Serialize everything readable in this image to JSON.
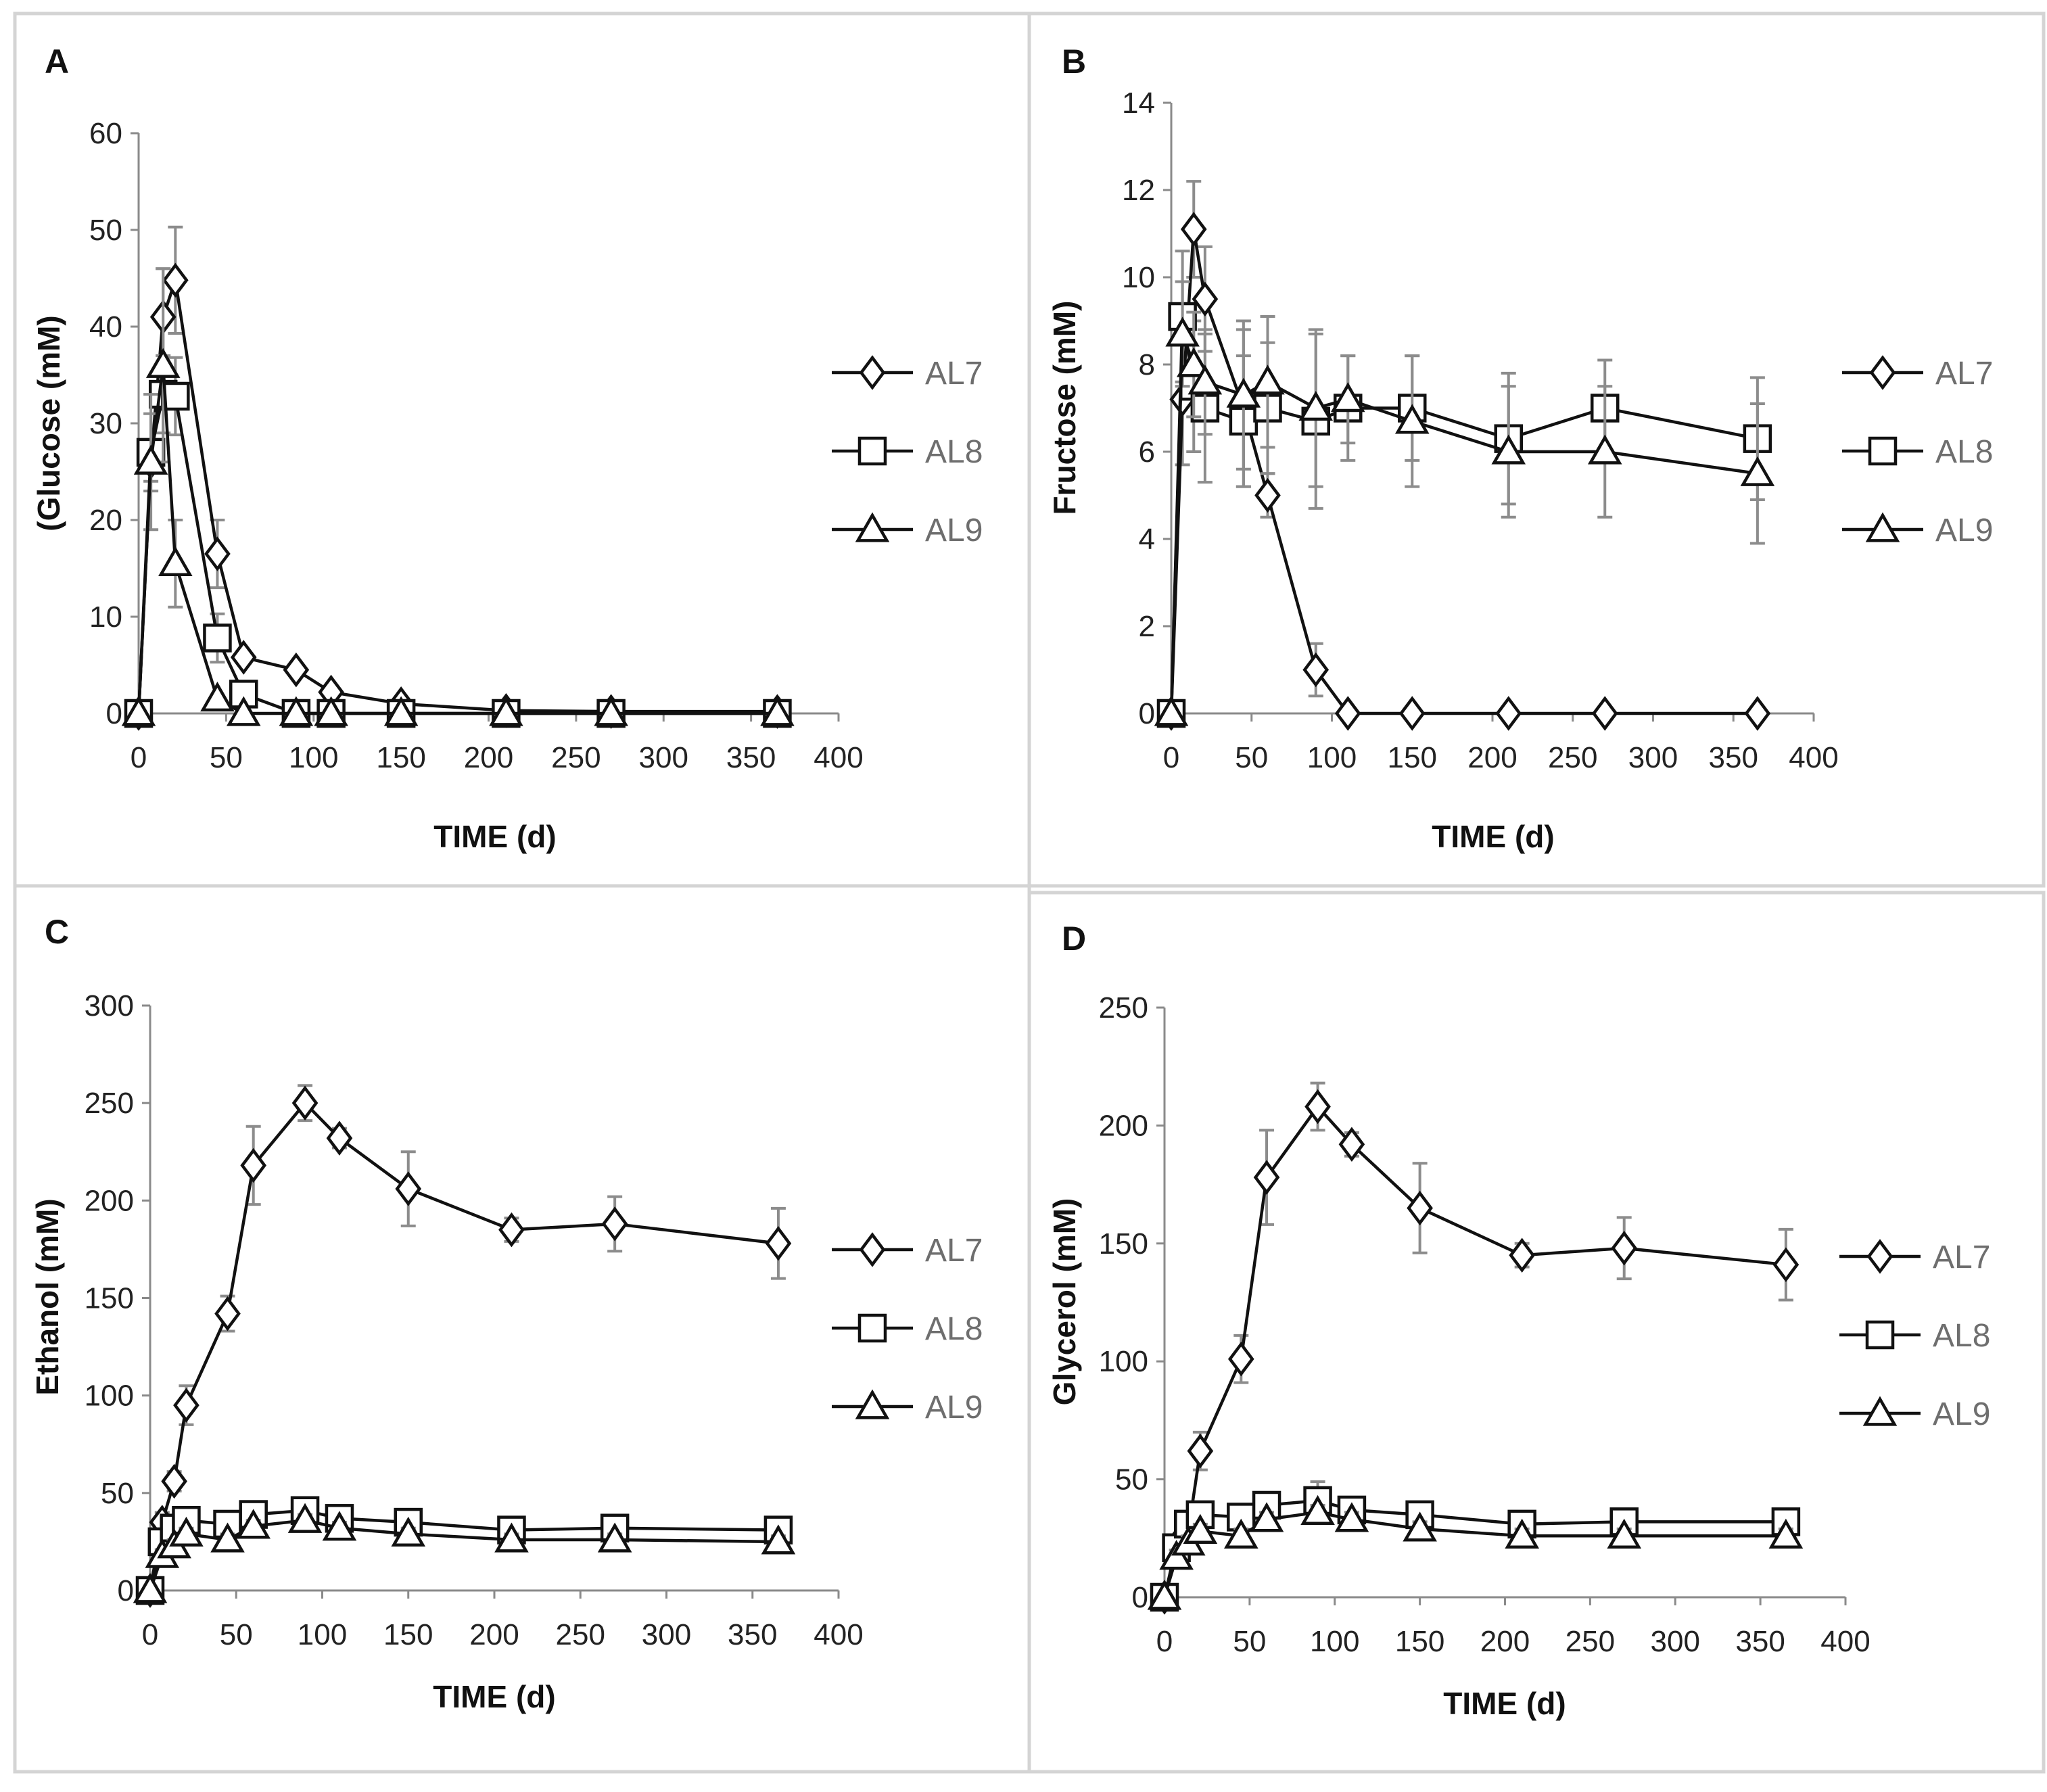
{
  "figure": {
    "legend_series": [
      "AL7",
      "AL8",
      "AL9"
    ],
    "marker_shapes": {
      "AL7": "diamond",
      "AL8": "square",
      "AL9": "triangle"
    },
    "colors": {
      "line": "#111111",
      "error_bar": "#8c8c8c",
      "axis": "#8a8a8a",
      "legend_text": "#6e6e6e",
      "frame": "#d4d4d4"
    }
  },
  "chart_data": [
    {
      "panel": "A",
      "type": "line",
      "xlabel": "TIME (d)",
      "ylabel": "(Glucose (mM)",
      "xlim": [
        0,
        400
      ],
      "ylim": [
        0,
        60
      ],
      "xticks": [
        0,
        50,
        100,
        150,
        200,
        250,
        300,
        350,
        400
      ],
      "yticks": [
        0,
        10,
        20,
        30,
        40,
        50,
        60
      ],
      "legend_position": "right",
      "series": [
        {
          "name": "AL7",
          "marker": "diamond",
          "x": [
            0,
            7,
            14,
            21,
            45,
            60,
            90,
            110,
            150,
            210,
            270,
            365
          ],
          "y": [
            0,
            26,
            41,
            44.8,
            16.5,
            5.8,
            4.5,
            2.2,
            1.0,
            0.3,
            0.2,
            0.2
          ],
          "err": [
            0,
            2,
            5,
            5.5,
            3.5,
            0,
            0,
            0,
            0,
            0,
            0,
            0
          ]
        },
        {
          "name": "AL8",
          "marker": "square",
          "x": [
            0,
            7,
            14,
            21,
            45,
            60,
            90,
            110,
            150,
            210,
            270,
            365
          ],
          "y": [
            0,
            27,
            33,
            32.8,
            7.8,
            2.0,
            0,
            0,
            0,
            0,
            0,
            0
          ],
          "err": [
            0,
            4,
            4,
            4,
            2.5,
            0,
            0,
            0,
            0,
            0,
            0,
            0
          ]
        },
        {
          "name": "AL9",
          "marker": "triangle",
          "x": [
            0,
            7,
            14,
            21,
            45,
            60,
            90,
            110,
            150,
            210,
            270,
            365
          ],
          "y": [
            0,
            26,
            36,
            15.5,
            1.5,
            0,
            0,
            0,
            0,
            0,
            0,
            0
          ],
          "err": [
            0,
            7,
            10,
            4.5,
            0,
            0,
            0,
            0,
            0,
            0,
            0,
            0
          ]
        }
      ]
    },
    {
      "panel": "B",
      "type": "line",
      "xlabel": "TIME (d)",
      "ylabel": "Fructose (mM)",
      "xlim": [
        0,
        400
      ],
      "ylim": [
        0,
        14
      ],
      "xticks": [
        0,
        50,
        100,
        150,
        200,
        250,
        300,
        350,
        400
      ],
      "yticks": [
        0,
        2,
        4,
        6,
        8,
        10,
        12,
        14
      ],
      "legend_position": "right",
      "series": [
        {
          "name": "AL7",
          "marker": "diamond",
          "x": [
            0,
            7,
            14,
            21,
            45,
            60,
            90,
            110,
            150,
            210,
            270,
            365
          ],
          "y": [
            0,
            7.2,
            11.1,
            9.5,
            7.0,
            5.0,
            1.0,
            0,
            0,
            0,
            0,
            0
          ],
          "err": [
            0,
            1.5,
            1.1,
            1.2,
            1.8,
            0.5,
            0.6,
            0,
            0,
            0,
            0,
            0
          ]
        },
        {
          "name": "AL8",
          "marker": "square",
          "x": [
            0,
            7,
            14,
            21,
            45,
            60,
            90,
            110,
            150,
            210,
            270,
            365
          ],
          "y": [
            0,
            9.1,
            7.5,
            7.0,
            6.7,
            7.0,
            6.7,
            7.0,
            7.0,
            6.3,
            7.0,
            6.3
          ],
          "err": [
            0,
            1.5,
            1.5,
            1.7,
            1.5,
            1.5,
            2.0,
            1.2,
            1.2,
            1.5,
            1.1,
            1.4
          ]
        },
        {
          "name": "AL9",
          "marker": "triangle",
          "x": [
            0,
            7,
            14,
            21,
            45,
            60,
            90,
            110,
            150,
            210,
            270,
            365
          ],
          "y": [
            0,
            8.7,
            8.0,
            7.6,
            7.3,
            7.6,
            7.0,
            7.2,
            6.7,
            6.0,
            6.0,
            5.5
          ],
          "err": [
            0,
            1.2,
            1.2,
            1.2,
            1.7,
            1.5,
            1.8,
            1.0,
            1.5,
            1.5,
            1.5,
            1.6
          ]
        }
      ]
    },
    {
      "panel": "C",
      "type": "line",
      "xlabel": "TIME (d)",
      "ylabel": "Ethanol (mM)",
      "xlim": [
        0,
        400
      ],
      "ylim": [
        0,
        300
      ],
      "xticks": [
        0,
        50,
        100,
        150,
        200,
        250,
        300,
        350,
        400
      ],
      "yticks": [
        0,
        50,
        100,
        150,
        200,
        250,
        300
      ],
      "legend_position": "right",
      "series": [
        {
          "name": "AL7",
          "marker": "diamond",
          "x": [
            0,
            7,
            14,
            21,
            45,
            60,
            90,
            110,
            150,
            210,
            270,
            365
          ],
          "y": [
            0,
            35,
            56,
            95,
            142,
            218,
            250,
            232,
            206,
            185,
            188,
            178
          ],
          "err": [
            0,
            5,
            5,
            10,
            9,
            20,
            9,
            5,
            19,
            6,
            14,
            18
          ]
        },
        {
          "name": "AL8",
          "marker": "square",
          "x": [
            0,
            7,
            14,
            21,
            45,
            60,
            90,
            110,
            150,
            210,
            270,
            365
          ],
          "y": [
            0,
            25,
            32,
            36,
            34,
            39,
            41,
            37,
            35,
            31,
            32,
            31
          ],
          "err": [
            0,
            3,
            3,
            3,
            3,
            3,
            3,
            3,
            3,
            3,
            3,
            3
          ]
        },
        {
          "name": "AL9",
          "marker": "triangle",
          "x": [
            0,
            7,
            14,
            21,
            45,
            60,
            90,
            110,
            150,
            210,
            270,
            365
          ],
          "y": [
            0,
            18,
            23,
            29,
            26,
            33,
            36,
            32,
            29,
            26,
            26,
            25
          ],
          "err": [
            0,
            3,
            3,
            3,
            3,
            3,
            3,
            3,
            3,
            3,
            3,
            3
          ]
        }
      ]
    },
    {
      "panel": "D",
      "type": "line",
      "xlabel": "TIME (d)",
      "ylabel": "Glycerol (mM)",
      "xlim": [
        0,
        400
      ],
      "ylim": [
        0,
        250
      ],
      "xticks": [
        0,
        50,
        100,
        150,
        200,
        250,
        300,
        350,
        400
      ],
      "yticks": [
        0,
        50,
        100,
        150,
        200,
        250
      ],
      "legend_position": "right",
      "series": [
        {
          "name": "AL7",
          "marker": "diamond",
          "x": [
            0,
            7,
            14,
            21,
            45,
            60,
            90,
            110,
            150,
            210,
            270,
            365
          ],
          "y": [
            0,
            22,
            28,
            62,
            101,
            178,
            208,
            192,
            165,
            145,
            148,
            141
          ],
          "err": [
            0,
            4,
            4,
            8,
            10,
            20,
            10,
            5,
            19,
            5,
            13,
            15
          ]
        },
        {
          "name": "AL8",
          "marker": "square",
          "x": [
            0,
            7,
            14,
            21,
            45,
            60,
            90,
            110,
            150,
            210,
            270,
            365
          ],
          "y": [
            0,
            21,
            31,
            35,
            34,
            39,
            41,
            37,
            35,
            31,
            32,
            32
          ],
          "err": [
            0,
            3,
            3,
            3,
            3,
            3,
            8,
            3,
            3,
            3,
            3,
            3
          ]
        },
        {
          "name": "AL9",
          "marker": "triangle",
          "x": [
            0,
            7,
            14,
            21,
            45,
            60,
            90,
            110,
            150,
            210,
            270,
            365
          ],
          "y": [
            0,
            17,
            23,
            28,
            26,
            33,
            36,
            33,
            29,
            26,
            26,
            26
          ],
          "err": [
            0,
            3,
            3,
            3,
            3,
            3,
            3,
            3,
            3,
            3,
            3,
            3
          ]
        }
      ]
    }
  ]
}
